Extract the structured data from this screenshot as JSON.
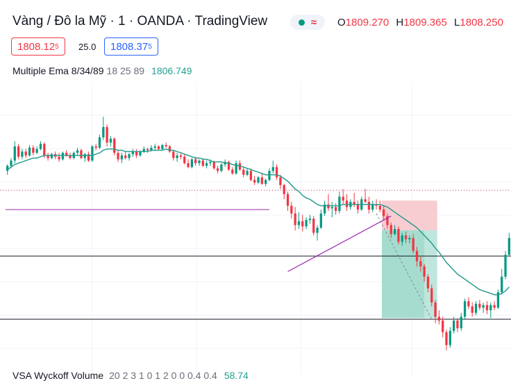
{
  "header": {
    "title": "Vàng / Đô la Mỹ · 1 · OANDA · TradingView",
    "ohlc": [
      {
        "label": "O",
        "value": "1809.270"
      },
      {
        "label": "H",
        "value": "1809.365"
      },
      {
        "label": "L",
        "value": "1808.250"
      }
    ]
  },
  "quote": {
    "bid_main": "1808.12",
    "bid_sup": "5",
    "spread": "25.0",
    "ask_main": "1808.37",
    "ask_sup": "5"
  },
  "indicators": {
    "ema_name": "Multiple Ema 8/34/89",
    "ema_params": "18 25 89",
    "ema_value": "1806.749",
    "vsa_name": "VSA Wyckoff Volume",
    "vsa_params": "20 2 3 1 0 1 2 0 0 0.4 0.4",
    "vsa_value": "58.74"
  },
  "colors": {
    "up": "#089981",
    "down": "#f23645",
    "ema": "#2a9d8f",
    "trendline": "#9c27b0",
    "stop_zone": "#f7cdd1",
    "target_zone": "#bfe6dc",
    "target_zone_dark": "#8fd3c3"
  },
  "chart_data": {
    "type": "candlestick",
    "candles": [
      [
        1807.6,
        1808.1,
        1807.3,
        1808.0
      ],
      [
        1808.0,
        1808.6,
        1807.8,
        1808.4
      ],
      [
        1808.4,
        1809.9,
        1808.2,
        1809.5
      ],
      [
        1809.5,
        1809.7,
        1808.5,
        1808.7
      ],
      [
        1808.7,
        1809.3,
        1808.5,
        1809.1
      ],
      [
        1809.1,
        1809.3,
        1808.6,
        1808.8
      ],
      [
        1808.8,
        1809.6,
        1808.7,
        1809.4
      ],
      [
        1809.4,
        1809.6,
        1808.8,
        1809.0
      ],
      [
        1809.0,
        1809.5,
        1808.9,
        1809.3
      ],
      [
        1809.3,
        1809.9,
        1809.2,
        1809.7
      ],
      [
        1809.7,
        1809.8,
        1808.6,
        1808.8
      ],
      [
        1808.8,
        1809.0,
        1808.4,
        1808.6
      ],
      [
        1808.6,
        1809.0,
        1808.5,
        1808.9
      ],
      [
        1808.9,
        1809.1,
        1808.5,
        1808.7
      ],
      [
        1808.7,
        1809.0,
        1808.3,
        1808.5
      ],
      [
        1808.5,
        1809.1,
        1808.4,
        1809.0
      ],
      [
        1809.0,
        1809.2,
        1808.7,
        1808.8
      ],
      [
        1808.8,
        1809.0,
        1808.5,
        1808.6
      ],
      [
        1808.6,
        1809.1,
        1808.5,
        1809.0
      ],
      [
        1809.0,
        1809.4,
        1808.8,
        1809.2
      ],
      [
        1809.2,
        1809.3,
        1808.5,
        1808.6
      ],
      [
        1808.6,
        1809.0,
        1808.3,
        1808.9
      ],
      [
        1808.9,
        1809.1,
        1808.3,
        1808.4
      ],
      [
        1808.4,
        1809.6,
        1808.3,
        1809.5
      ],
      [
        1809.5,
        1809.7,
        1809.2,
        1809.4
      ],
      [
        1809.4,
        1810.4,
        1809.3,
        1810.2
      ],
      [
        1810.2,
        1811.8,
        1810.0,
        1811.0
      ],
      [
        1811.0,
        1811.2,
        1809.5,
        1809.8
      ],
      [
        1809.8,
        1810.3,
        1809.5,
        1810.1
      ],
      [
        1810.1,
        1810.2,
        1808.8,
        1809.0
      ],
      [
        1809.0,
        1809.2,
        1808.3,
        1808.5
      ],
      [
        1808.5,
        1809.0,
        1808.2,
        1808.8
      ],
      [
        1808.8,
        1809.1,
        1808.5,
        1808.6
      ],
      [
        1808.6,
        1809.0,
        1808.4,
        1808.9
      ],
      [
        1808.9,
        1809.3,
        1808.7,
        1809.1
      ],
      [
        1809.1,
        1809.3,
        1808.6,
        1808.8
      ],
      [
        1808.8,
        1809.2,
        1808.7,
        1809.1
      ],
      [
        1809.1,
        1809.5,
        1809.0,
        1809.3
      ],
      [
        1809.3,
        1809.4,
        1809.0,
        1809.2
      ],
      [
        1809.2,
        1809.6,
        1809.1,
        1809.4
      ],
      [
        1809.4,
        1809.7,
        1809.2,
        1809.5
      ],
      [
        1809.5,
        1809.6,
        1809.2,
        1809.3
      ],
      [
        1809.3,
        1809.7,
        1809.2,
        1809.6
      ],
      [
        1809.6,
        1809.8,
        1809.4,
        1809.5
      ],
      [
        1809.5,
        1809.6,
        1809.0,
        1809.1
      ],
      [
        1809.1,
        1809.2,
        1808.4,
        1808.6
      ],
      [
        1808.6,
        1809.0,
        1808.3,
        1808.8
      ],
      [
        1808.8,
        1809.0,
        1808.5,
        1808.7
      ],
      [
        1808.7,
        1808.9,
        1808.1,
        1808.2
      ],
      [
        1808.2,
        1808.5,
        1807.8,
        1807.9
      ],
      [
        1807.9,
        1808.6,
        1807.8,
        1808.5
      ],
      [
        1808.5,
        1808.7,
        1808.0,
        1808.2
      ],
      [
        1808.2,
        1808.5,
        1808.0,
        1808.4
      ],
      [
        1808.4,
        1808.6,
        1807.9,
        1808.0
      ],
      [
        1808.0,
        1808.4,
        1807.8,
        1808.2
      ],
      [
        1808.2,
        1808.5,
        1808.0,
        1808.3
      ],
      [
        1808.3,
        1808.4,
        1807.7,
        1807.8
      ],
      [
        1807.8,
        1808.0,
        1807.4,
        1807.6
      ],
      [
        1807.6,
        1808.2,
        1807.5,
        1808.1
      ],
      [
        1808.1,
        1808.5,
        1807.9,
        1808.3
      ],
      [
        1808.3,
        1808.4,
        1807.6,
        1807.7
      ],
      [
        1807.7,
        1807.9,
        1807.3,
        1807.4
      ],
      [
        1807.4,
        1808.4,
        1807.3,
        1808.2
      ],
      [
        1808.2,
        1808.4,
        1807.6,
        1807.7
      ],
      [
        1807.7,
        1807.9,
        1807.1,
        1807.3
      ],
      [
        1807.3,
        1807.8,
        1807.2,
        1807.6
      ],
      [
        1807.6,
        1807.8,
        1806.8,
        1806.9
      ],
      [
        1806.9,
        1807.2,
        1806.5,
        1806.7
      ],
      [
        1806.7,
        1807.2,
        1806.6,
        1807.1
      ],
      [
        1807.1,
        1807.4,
        1806.5,
        1806.6
      ],
      [
        1806.6,
        1807.0,
        1806.4,
        1806.9
      ],
      [
        1806.9,
        1807.8,
        1806.8,
        1807.6
      ],
      [
        1807.6,
        1808.4,
        1807.4,
        1807.9
      ],
      [
        1807.9,
        1808.1,
        1806.9,
        1807.1
      ],
      [
        1807.1,
        1807.3,
        1806.2,
        1806.5
      ],
      [
        1806.5,
        1806.6,
        1805.4,
        1805.8
      ],
      [
        1805.8,
        1806.0,
        1804.5,
        1804.9
      ],
      [
        1804.9,
        1805.2,
        1803.9,
        1804.3
      ],
      [
        1804.3,
        1804.8,
        1803.0,
        1803.4
      ],
      [
        1803.4,
        1804.4,
        1803.1,
        1803.7
      ],
      [
        1803.7,
        1804.2,
        1802.9,
        1803.3
      ],
      [
        1803.3,
        1804.0,
        1803.1,
        1803.8
      ],
      [
        1803.8,
        1804.2,
        1803.5,
        1803.9
      ],
      [
        1803.9,
        1804.1,
        1802.6,
        1802.8
      ],
      [
        1802.8,
        1803.4,
        1802.2,
        1803.2
      ],
      [
        1803.2,
        1804.6,
        1803.1,
        1804.3
      ],
      [
        1804.3,
        1805.3,
        1804.1,
        1805.0
      ],
      [
        1805.0,
        1805.8,
        1804.5,
        1804.7
      ],
      [
        1804.7,
        1805.2,
        1804.0,
        1804.8
      ],
      [
        1804.8,
        1805.1,
        1804.2,
        1804.5
      ],
      [
        1804.5,
        1806.0,
        1804.3,
        1805.6
      ],
      [
        1805.6,
        1806.2,
        1805.0,
        1805.3
      ],
      [
        1805.3,
        1805.8,
        1804.5,
        1804.8
      ],
      [
        1804.8,
        1805.4,
        1804.6,
        1805.2
      ],
      [
        1805.2,
        1805.9,
        1804.8,
        1805.0
      ],
      [
        1805.0,
        1805.3,
        1804.3,
        1804.6
      ],
      [
        1804.6,
        1805.6,
        1804.5,
        1805.4
      ],
      [
        1805.4,
        1806.2,
        1805.1,
        1805.2
      ],
      [
        1805.2,
        1805.6,
        1804.3,
        1804.6
      ],
      [
        1804.6,
        1805.3,
        1804.4,
        1805.0
      ],
      [
        1805.0,
        1805.4,
        1804.6,
        1804.9
      ],
      [
        1804.9,
        1805.3,
        1804.4,
        1804.6
      ],
      [
        1804.6,
        1804.9,
        1803.8,
        1804.1
      ],
      [
        1804.1,
        1804.3,
        1803.1,
        1803.4
      ],
      [
        1803.4,
        1803.6,
        1802.4,
        1802.7
      ],
      [
        1802.7,
        1803.4,
        1802.6,
        1803.1
      ],
      [
        1803.1,
        1803.3,
        1801.9,
        1802.1
      ],
      [
        1802.1,
        1802.8,
        1801.8,
        1802.6
      ],
      [
        1802.6,
        1802.9,
        1802.0,
        1802.3
      ],
      [
        1802.3,
        1802.6,
        1802.0,
        1802.4
      ],
      [
        1802.4,
        1802.7,
        1801.2,
        1801.4
      ],
      [
        1801.4,
        1801.7,
        1800.2,
        1800.6
      ],
      [
        1800.6,
        1801.0,
        1799.8,
        1800.2
      ],
      [
        1800.2,
        1800.4,
        1799.0,
        1799.4
      ],
      [
        1799.4,
        1799.6,
        1798.2,
        1798.5
      ],
      [
        1798.5,
        1798.8,
        1797.1,
        1797.4
      ],
      [
        1797.4,
        1797.6,
        1795.8,
        1796.3
      ],
      [
        1796.3,
        1796.8,
        1795.7,
        1796.0
      ],
      [
        1796.0,
        1796.3,
        1794.7,
        1795.1
      ],
      [
        1795.1,
        1795.3,
        1793.7,
        1794.1
      ],
      [
        1794.1,
        1795.5,
        1793.9,
        1795.2
      ],
      [
        1795.2,
        1796.3,
        1795.0,
        1796.0
      ],
      [
        1796.0,
        1796.2,
        1795.1,
        1795.4
      ],
      [
        1795.4,
        1796.6,
        1795.2,
        1796.3
      ],
      [
        1796.3,
        1797.7,
        1796.1,
        1797.5
      ],
      [
        1797.5,
        1797.8,
        1796.9,
        1797.1
      ],
      [
        1797.1,
        1797.4,
        1796.3,
        1796.6
      ],
      [
        1796.6,
        1797.5,
        1796.4,
        1797.3
      ],
      [
        1797.3,
        1797.6,
        1796.8,
        1797.0
      ],
      [
        1797.0,
        1797.4,
        1796.6,
        1797.2
      ],
      [
        1797.2,
        1797.5,
        1796.5,
        1796.8
      ],
      [
        1796.8,
        1797.4,
        1796.2,
        1797.2
      ],
      [
        1797.2,
        1797.5,
        1796.8,
        1797.0
      ],
      [
        1797.0,
        1798.4,
        1796.9,
        1798.2
      ],
      [
        1798.2,
        1800.0,
        1798.0,
        1799.4
      ],
      [
        1799.4,
        1801.4,
        1799.2,
        1801.1
      ],
      [
        1801.1,
        1802.8,
        1801.0,
        1802.4
      ]
    ],
    "ema": [
      1807.7,
      1807.9,
      1808.1,
      1808.2,
      1808.3,
      1808.4,
      1808.5,
      1808.6,
      1808.6,
      1808.7,
      1808.8,
      1808.8,
      1808.8,
      1808.8,
      1808.8,
      1808.8,
      1808.8,
      1808.8,
      1808.8,
      1808.8,
      1808.8,
      1808.8,
      1808.8,
      1808.8,
      1808.9,
      1809.0,
      1809.2,
      1809.3,
      1809.3,
      1809.3,
      1809.2,
      1809.2,
      1809.1,
      1809.1,
      1809.1,
      1809.1,
      1809.1,
      1809.1,
      1809.1,
      1809.2,
      1809.2,
      1809.2,
      1809.2,
      1809.3,
      1809.2,
      1809.2,
      1809.1,
      1809.0,
      1808.9,
      1808.8,
      1808.7,
      1808.6,
      1808.6,
      1808.5,
      1808.5,
      1808.4,
      1808.3,
      1808.3,
      1808.3,
      1808.2,
      1808.2,
      1808.1,
      1808.0,
      1808.0,
      1807.9,
      1807.8,
      1807.7,
      1807.6,
      1807.5,
      1807.4,
      1807.3,
      1807.3,
      1807.3,
      1807.3,
      1807.2,
      1807.0,
      1806.8,
      1806.5,
      1806.2,
      1806.0,
      1805.7,
      1805.5,
      1805.4,
      1805.2,
      1805.0,
      1804.9,
      1804.9,
      1804.9,
      1804.9,
      1804.9,
      1804.9,
      1805.0,
      1805.0,
      1805.0,
      1805.0,
      1805.0,
      1805.0,
      1805.0,
      1805.0,
      1805.0,
      1805.0,
      1805.0,
      1804.9,
      1804.8,
      1804.6,
      1804.4,
      1804.2,
      1804.0,
      1803.8,
      1803.6,
      1803.4,
      1803.2,
      1802.9,
      1802.6,
      1802.3,
      1802.0,
      1801.6,
      1801.3,
      1800.9,
      1800.5,
      1800.2,
      1799.9,
      1799.6,
      1799.4,
      1799.2,
      1799.0,
      1798.8,
      1798.6,
      1798.4,
      1798.3,
      1798.2,
      1798.1,
      1798.0,
      1798.0,
      1798.1,
      1798.3,
      1798.6
    ],
    "x_range": [
      0,
      136
    ],
    "y_range": [
      1791.8,
      1814.5
    ],
    "levels": {
      "dotted_red": 1806.1,
      "black_upper": 1801.0,
      "black_lower": 1796.1,
      "purple_horizontal": 1804.6
    },
    "trendline": {
      "from": [
        76,
        1799.8
      ],
      "to": [
        104,
        1804.1
      ],
      "to_end_index": 104
    },
    "position": {
      "start_index": 102,
      "end_index": 116,
      "entry": 1803.0,
      "stop": 1805.3,
      "target": 1796.2
    },
    "dashed_path": {
      "from": [
        100,
        1804.3
      ],
      "to": [
        115,
        1796.1
      ]
    }
  }
}
